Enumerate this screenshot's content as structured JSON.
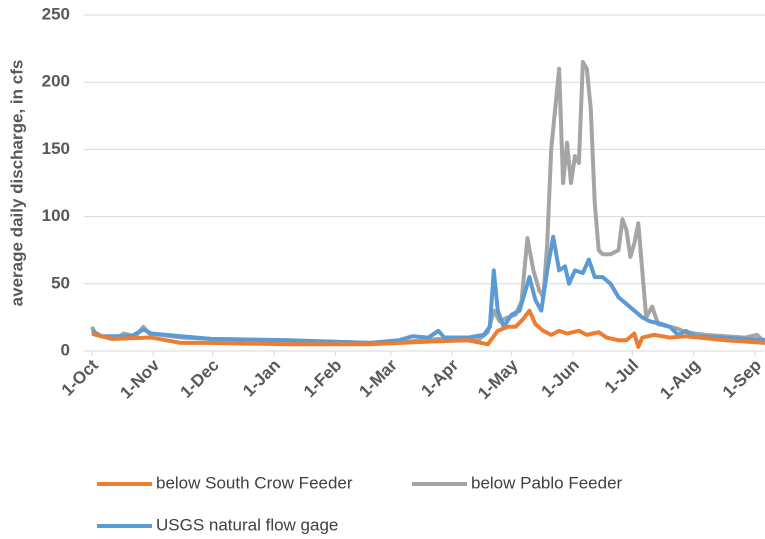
{
  "chart_data": {
    "type": "line",
    "y_label": "average daily discharge, in cfs",
    "xlim": [
      -4,
      340
    ],
    "ylim": [
      0,
      250
    ],
    "yticks": [
      0,
      50,
      100,
      150,
      200,
      250
    ],
    "xticks": [
      {
        "value": 0,
        "label": "1-Oct"
      },
      {
        "value": 31,
        "label": "1-Nov"
      },
      {
        "value": 61,
        "label": "1-Dec"
      },
      {
        "value": 92,
        "label": "1-Jan"
      },
      {
        "value": 123,
        "label": "1-Feb"
      },
      {
        "value": 151,
        "label": "1-Mar"
      },
      {
        "value": 182,
        "label": "1-Apr"
      },
      {
        "value": 212,
        "label": "1-May"
      },
      {
        "value": 243,
        "label": "1-Jun"
      },
      {
        "value": 273,
        "label": "1-Jul"
      },
      {
        "value": 304,
        "label": "1-Aug"
      },
      {
        "value": 335,
        "label": "1-Sep"
      }
    ],
    "grid": true,
    "series": [
      {
        "name": "below Pablo Feeder",
        "color": "#a5a5a5",
        "x": [
          0,
          2,
          8,
          12,
          16,
          22,
          26,
          29,
          35,
          45,
          60,
          90,
          120,
          140,
          160,
          175,
          185,
          195,
          200,
          203,
          206,
          210,
          214,
          217,
          220,
          223,
          226,
          228,
          230,
          232,
          234,
          236,
          238,
          240,
          242,
          244,
          246,
          248,
          250,
          252,
          254,
          256,
          258,
          262,
          266,
          268,
          270,
          272,
          274,
          276,
          278,
          280,
          283,
          286,
          295,
          300,
          310,
          320,
          330,
          336,
          338,
          340
        ],
        "values": [
          18,
          12,
          10,
          9,
          13,
          11,
          18,
          13,
          12,
          10,
          9,
          8,
          7,
          6,
          7,
          9,
          8,
          8,
          14,
          30,
          22,
          25,
          27,
          37,
          84,
          60,
          45,
          40,
          80,
          150,
          180,
          210,
          125,
          155,
          125,
          145,
          140,
          215,
          210,
          180,
          110,
          75,
          72,
          72,
          75,
          98,
          90,
          70,
          80,
          95,
          60,
          25,
          33,
          20,
          17,
          14,
          12,
          11,
          10,
          12,
          9,
          8
        ]
      },
      {
        "name": "USGS natural flow gage",
        "color": "#5b9bd5",
        "x": [
          0,
          5,
          20,
          26,
          30,
          45,
          60,
          100,
          140,
          155,
          162,
          170,
          175,
          178,
          190,
          198,
          201,
          203,
          205,
          208,
          212,
          216,
          219,
          221,
          224,
          227,
          230,
          233,
          236,
          239,
          241,
          244,
          248,
          251,
          254,
          258,
          262,
          266,
          270,
          274,
          278,
          282,
          288,
          292,
          296,
          300,
          305,
          320,
          340
        ],
        "values": [
          15,
          11,
          11,
          16,
          13,
          11,
          9,
          8,
          6,
          8,
          11,
          10,
          15,
          10,
          10,
          12,
          18,
          60,
          30,
          18,
          27,
          30,
          45,
          55,
          38,
          30,
          60,
          85,
          60,
          63,
          50,
          60,
          58,
          68,
          55,
          55,
          50,
          40,
          35,
          30,
          25,
          22,
          20,
          18,
          12,
          15,
          11,
          10,
          8
        ]
      },
      {
        "name": "below South Crow Feeder",
        "color": "#ed7d31",
        "x": [
          0,
          10,
          30,
          45,
          60,
          100,
          140,
          170,
          190,
          200,
          205,
          210,
          214,
          218,
          221,
          224,
          228,
          232,
          236,
          240,
          246,
          250,
          256,
          260,
          266,
          270,
          274,
          276,
          278,
          284,
          292,
          300,
          320,
          340
        ],
        "values": [
          13,
          9,
          10,
          6,
          6,
          5,
          5,
          7,
          8,
          5,
          15,
          18,
          18,
          24,
          30,
          20,
          15,
          12,
          15,
          13,
          15,
          12,
          14,
          10,
          8,
          8,
          13,
          3,
          10,
          12,
          10,
          11,
          8,
          6
        ]
      }
    ]
  }
}
